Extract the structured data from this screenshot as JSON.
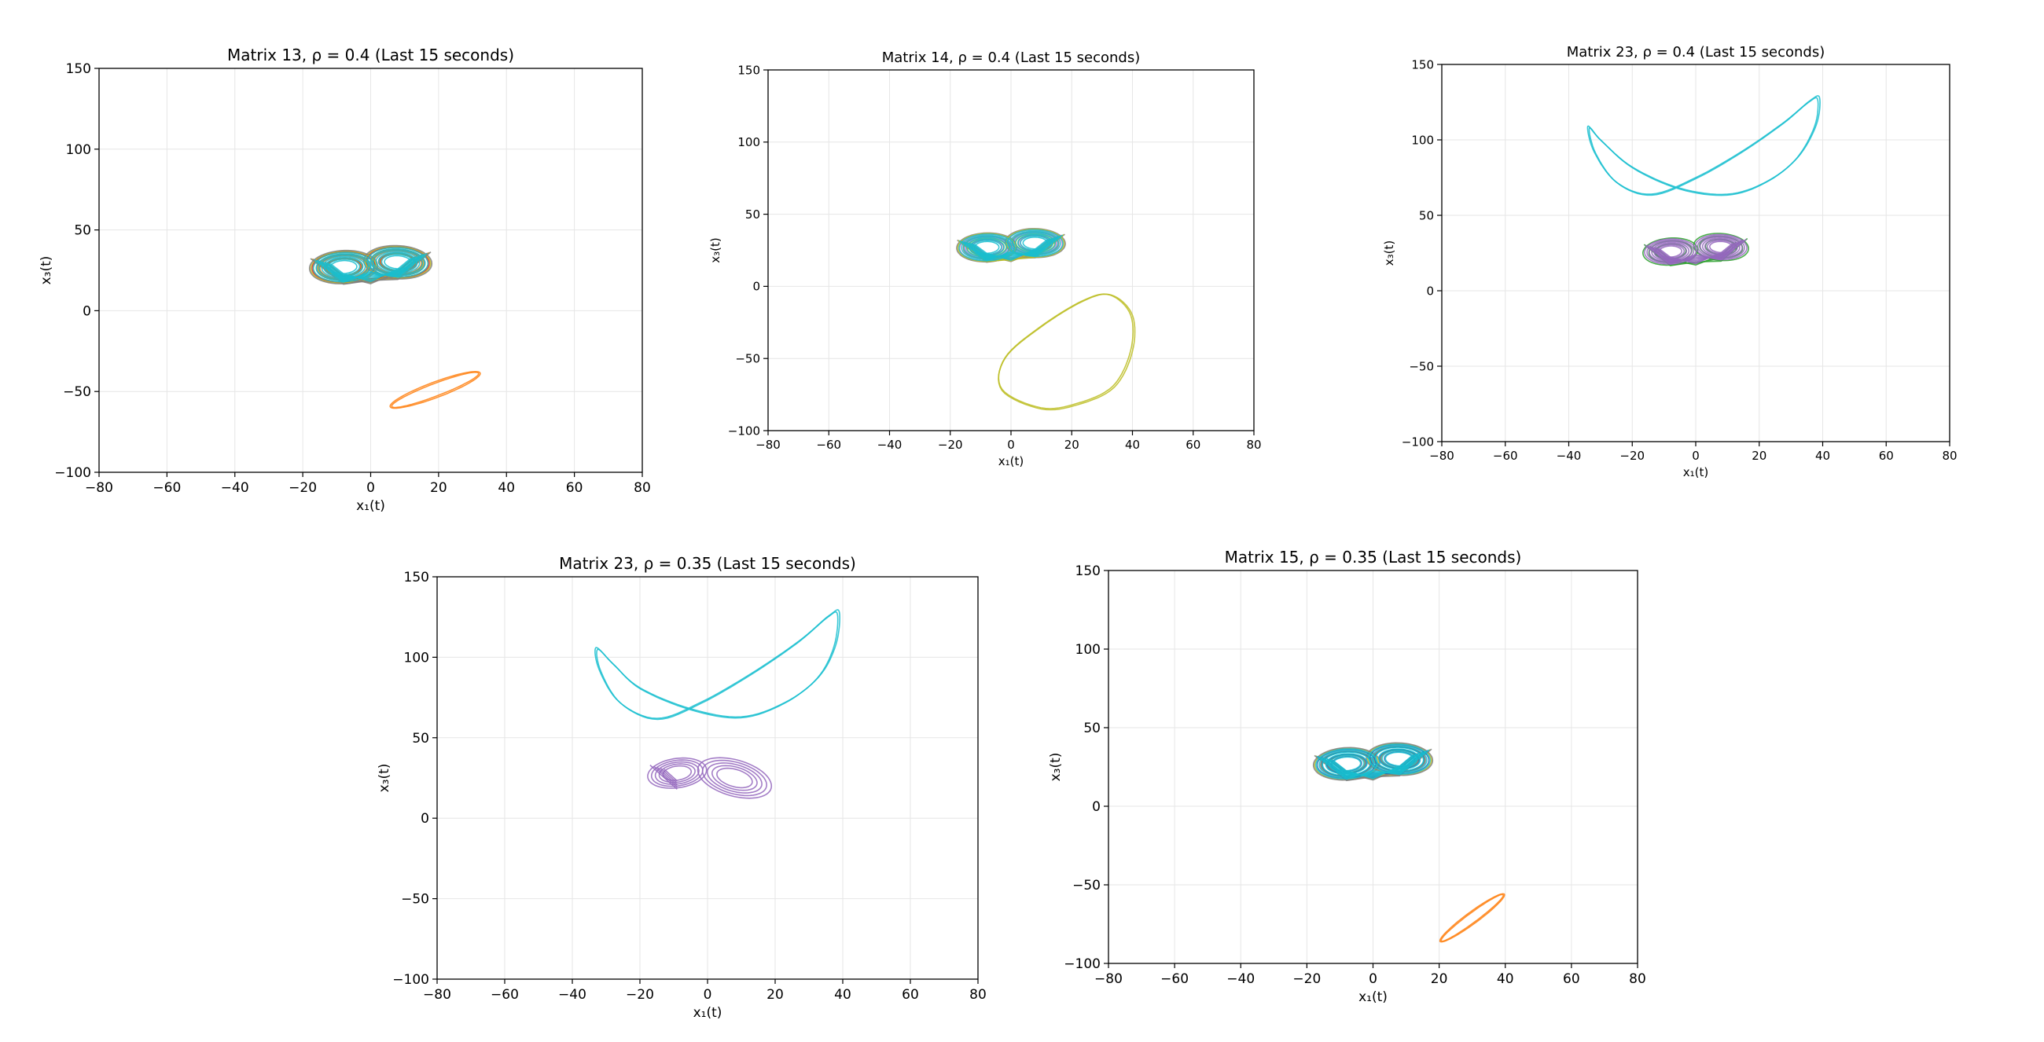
{
  "figure": {
    "background": "#ffffff",
    "grid": true,
    "grid_color": "#e6e6e6",
    "axes_color": "#000000"
  },
  "chart_data": [
    {
      "type": "line",
      "title": "Matrix 13, ρ = 0.4 (Last 15 seconds)",
      "xlabel": "x₁(t)",
      "ylabel": "x₃(t)",
      "xlim": [
        -80,
        80
      ],
      "ylim": [
        -100,
        150
      ],
      "xticks": [
        -80,
        -60,
        -40,
        -20,
        0,
        20,
        40,
        60,
        80
      ],
      "yticks": [
        -100,
        -50,
        0,
        50,
        100,
        150
      ],
      "xtick_labels": [
        "−80",
        "−60",
        "−40",
        "−20",
        "0",
        "20",
        "40",
        "60",
        "80"
      ],
      "ytick_labels": [
        "−100",
        "−50",
        "0",
        "50",
        "100",
        "150"
      ],
      "grid": true,
      "series": [
        {
          "kind": "butterfly",
          "color": "#ff7f0e",
          "cx": 0,
          "cy": 28,
          "sx": 12,
          "sy": 11,
          "lobe_x": 8,
          "lobe_y": 27,
          "loops": 3
        },
        {
          "kind": "butterfly",
          "color": "#d62728",
          "cx": 0,
          "cy": 28,
          "sx": 12.5,
          "sy": 11.5,
          "lobe_x": 8,
          "lobe_y": 27,
          "loops": 3
        },
        {
          "kind": "butterfly",
          "color": "#bcbd22",
          "cx": 0,
          "cy": 28,
          "sx": 13,
          "sy": 12,
          "lobe_x": 8,
          "lobe_y": 27,
          "loops": 3
        },
        {
          "kind": "butterfly",
          "color": "#7f7f7f",
          "cx": 0,
          "cy": 28,
          "sx": 13.5,
          "sy": 12.5,
          "lobe_x": 8,
          "lobe_y": 27,
          "loops": 3
        },
        {
          "kind": "butterfly",
          "color": "#17becf",
          "cx": 0,
          "cy": 28,
          "sx": 12,
          "sy": 11,
          "lobe_x": 8,
          "lobe_y": 27,
          "loops": 7
        },
        {
          "kind": "ellipse",
          "color": "#ff7f0e",
          "cx": 19,
          "cy": -49,
          "rx": 17,
          "ry": 4,
          "angle": 40
        }
      ]
    },
    {
      "type": "line",
      "title": "Matrix 14, ρ = 0.4 (Last 15 seconds)",
      "xlabel": "x₁(t)",
      "ylabel": "x₃(t)",
      "xlim": [
        -80,
        80
      ],
      "ylim": [
        -100,
        150
      ],
      "xticks": [
        -80,
        -60,
        -40,
        -20,
        0,
        20,
        40,
        60,
        80
      ],
      "yticks": [
        -100,
        -50,
        0,
        50,
        100,
        150
      ],
      "xtick_labels": [
        "−80",
        "−60",
        "−40",
        "−20",
        "0",
        "20",
        "40",
        "60",
        "80"
      ],
      "ytick_labels": [
        "−100",
        "−50",
        "0",
        "50",
        "100",
        "150"
      ],
      "grid": true,
      "series": [
        {
          "kind": "butterfly",
          "color": "#e377c2",
          "cx": 0,
          "cy": 28,
          "sx": 12,
          "sy": 11,
          "lobe_x": 8,
          "lobe_y": 27,
          "loops": 3
        },
        {
          "kind": "butterfly",
          "color": "#7f7f7f",
          "cx": 0,
          "cy": 28,
          "sx": 13.5,
          "sy": 12,
          "lobe_x": 8,
          "lobe_y": 27,
          "loops": 3
        },
        {
          "kind": "butterfly",
          "color": "#bcbd22",
          "cx": 0,
          "cy": 28,
          "sx": 13,
          "sy": 11.5,
          "lobe_x": 8,
          "lobe_y": 27,
          "loops": 2
        },
        {
          "kind": "butterfly",
          "color": "#17becf",
          "cx": 0,
          "cy": 28,
          "sx": 12.5,
          "sy": 11,
          "lobe_x": 8,
          "lobe_y": 27,
          "loops": 7
        },
        {
          "kind": "drop",
          "color": "#bcbd22",
          "points": [
            [
              33,
              -6
            ],
            [
              24,
              -10
            ],
            [
              10,
              -28
            ],
            [
              -2,
              -50
            ],
            [
              -3,
              -72
            ],
            [
              10,
              -85
            ],
            [
              22,
              -82
            ],
            [
              34,
              -70
            ],
            [
              40,
              -45
            ],
            [
              40,
              -20
            ],
            [
              33,
              -6
            ]
          ]
        }
      ]
    },
    {
      "type": "line",
      "title": "Matrix 23, ρ = 0.4 (Last 15 seconds)",
      "xlabel": "x₁(t)",
      "ylabel": "x₃(t)",
      "xlim": [
        -80,
        80
      ],
      "ylim": [
        -100,
        150
      ],
      "xticks": [
        -80,
        -60,
        -40,
        -20,
        0,
        20,
        40,
        60,
        80
      ],
      "yticks": [
        -100,
        -50,
        0,
        50,
        100,
        150
      ],
      "xtick_labels": [
        "−80",
        "−60",
        "−40",
        "−20",
        "0",
        "20",
        "40",
        "60",
        "80"
      ],
      "ytick_labels": [
        "−100",
        "−50",
        "0",
        "50",
        "100",
        "150"
      ],
      "grid": true,
      "series": [
        {
          "kind": "butterfly",
          "color": "#2ca02c",
          "cx": -2,
          "cy": 27,
          "sx": 11.5,
          "sy": 11,
          "lobe_x": 8,
          "lobe_y": 26,
          "loops": 3
        },
        {
          "kind": "butterfly",
          "color": "#9467bd",
          "cx": 0,
          "cy": 27,
          "sx": 11,
          "sy": 10,
          "lobe_x": 8,
          "lobe_y": 26,
          "loops": 7
        },
        {
          "kind": "wing",
          "color": "#17becf",
          "points": [
            [
              -34,
              109
            ],
            [
              -30,
              100
            ],
            [
              -20,
              82
            ],
            [
              -5,
              68
            ],
            [
              10,
              64
            ],
            [
              22,
              72
            ],
            [
              32,
              88
            ],
            [
              38,
              110
            ],
            [
              39,
              128
            ],
            [
              36,
              126
            ],
            [
              28,
              112
            ],
            [
              15,
              93
            ],
            [
              0,
              75
            ],
            [
              -14,
              64
            ],
            [
              -25,
              72
            ],
            [
              -32,
              92
            ],
            [
              -34,
              109
            ]
          ]
        }
      ]
    },
    {
      "type": "line",
      "title": "Matrix 23, ρ = 0.35 (Last 15 seconds)",
      "xlabel": "x₁(t)",
      "ylabel": "x₃(t)",
      "xlim": [
        -80,
        80
      ],
      "ylim": [
        -100,
        150
      ],
      "xticks": [
        -80,
        -60,
        -40,
        -20,
        0,
        20,
        40,
        60,
        80
      ],
      "yticks": [
        -100,
        -50,
        0,
        50,
        100,
        150
      ],
      "xtick_labels": [
        "−80",
        "−60",
        "−40",
        "−20",
        "0",
        "20",
        "40",
        "60",
        "80"
      ],
      "ytick_labels": [
        "−100",
        "−50",
        "0",
        "50",
        "100",
        "150"
      ],
      "grid": true,
      "series": [
        {
          "kind": "butterfly_asym",
          "color": "#9467bd",
          "cx": 0,
          "cy": 27,
          "lx": 9,
          "ly": 28,
          "lsx": 8,
          "lsy": 10,
          "rx": 8,
          "ry": 25,
          "rsx": 9,
          "rsy": 14,
          "loops": 5
        },
        {
          "kind": "wing",
          "color": "#17becf",
          "points": [
            [
              -33,
              106
            ],
            [
              -28,
              96
            ],
            [
              -20,
              81
            ],
            [
              -5,
              68
            ],
            [
              10,
              63
            ],
            [
              23,
              72
            ],
            [
              33,
              88
            ],
            [
              38,
              108
            ],
            [
              39,
              128
            ],
            [
              36,
              126
            ],
            [
              27,
              110
            ],
            [
              13,
              90
            ],
            [
              -2,
              72
            ],
            [
              -15,
              62
            ],
            [
              -26,
              72
            ],
            [
              -32,
              92
            ],
            [
              -33,
              106
            ]
          ]
        }
      ]
    },
    {
      "type": "line",
      "title": "Matrix 15, ρ = 0.35 (Last 15 seconds)",
      "xlabel": "x₁(t)",
      "ylabel": "x₃(t)",
      "xlim": [
        -80,
        80
      ],
      "ylim": [
        -100,
        150
      ],
      "xticks": [
        -80,
        -60,
        -40,
        -20,
        0,
        20,
        40,
        60,
        80
      ],
      "yticks": [
        -100,
        -50,
        0,
        50,
        100,
        150
      ],
      "xtick_labels": [
        "−80",
        "−60",
        "−40",
        "−20",
        "0",
        "20",
        "40",
        "60",
        "80"
      ],
      "ytick_labels": [
        "−100",
        "−50",
        "0",
        "50",
        "100",
        "150"
      ],
      "grid": true,
      "series": [
        {
          "kind": "butterfly",
          "color": "#bcbd22",
          "cx": 0,
          "cy": 28,
          "sx": 13,
          "sy": 12,
          "lobe_x": 8,
          "lobe_y": 27,
          "loops": 3
        },
        {
          "kind": "butterfly",
          "color": "#7f7f7f",
          "cx": 0,
          "cy": 28,
          "sx": 13.5,
          "sy": 12.5,
          "lobe_x": 8,
          "lobe_y": 27,
          "loops": 3
        },
        {
          "kind": "butterfly",
          "color": "#1f77b4",
          "cx": 0,
          "cy": 28,
          "sx": 12,
          "sy": 11,
          "lobe_x": 8,
          "lobe_y": 27,
          "loops": 4
        },
        {
          "kind": "butterfly",
          "color": "#17becf",
          "cx": 0,
          "cy": 28,
          "sx": 12.5,
          "sy": 11.5,
          "lobe_x": 8,
          "lobe_y": 27,
          "loops": 6
        },
        {
          "kind": "ellipse",
          "color": "#ff7f0e",
          "cx": 30,
          "cy": -71,
          "rx": 18,
          "ry": 2.5,
          "angle": 58
        }
      ]
    }
  ]
}
